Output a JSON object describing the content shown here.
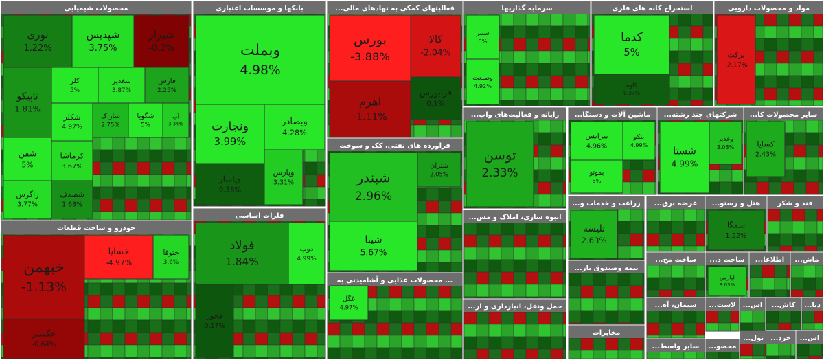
{
  "chart_data": {
    "type": "treemap",
    "groups": [
      {
        "title": "محصولات شیمیایی",
        "tiles": [
          "نوری",
          "شپدیس",
          "شیراز",
          "تاپیکو",
          "کلر",
          "شغدیر",
          "فارس",
          "شکلر",
          "شاراک",
          "شگویا",
          "آپ",
          "شفن",
          "کرماشا",
          "زاگرس",
          "شصدف"
        ],
        "values": [
          1.22,
          3.75,
          -0.2,
          1.81,
          5,
          3.87,
          2.25,
          4.97,
          2.75,
          5,
          3.34,
          5,
          3.67,
          3.77,
          1.68
        ],
        "value_labels": [
          "1.22%",
          "3.75%",
          "-0.2%",
          "1.81%",
          "5%",
          "3.87%",
          "2.25%",
          "4.97%",
          "2.75%",
          "5%",
          "3.34%",
          "5%",
          "3.67%",
          "3.77%",
          "1.68%"
        ]
      },
      {
        "title": "خودرو و ساخت قطعات",
        "tiles": [
          "خبهمن",
          "خگستر",
          "خساپا",
          "ختوقا"
        ],
        "values": [
          -1.13,
          -0.64,
          -4.97,
          3.6
        ],
        "value_labels": [
          "-1.13%",
          "-0.64%",
          "-4.97%",
          "3.6%"
        ]
      },
      {
        "title": "بانکها و موسسات اعتباری",
        "tiles": [
          "وبملت",
          "ونجارت",
          "وبصادر",
          "وپاسار",
          "وپارس"
        ],
        "values": [
          4.98,
          3.99,
          4.28,
          0.38,
          3.31
        ],
        "value_labels": [
          "4.98%",
          "3.99%",
          "4.28%",
          "0.38%",
          "3.31%"
        ]
      },
      {
        "title": "فلزات اساسی",
        "tiles": [
          "فولاد",
          "ذوب",
          "فخوز"
        ],
        "values": [
          1.84,
          4.99,
          0.17
        ],
        "value_labels": [
          "1.84%",
          "4.99%",
          "0.17%"
        ]
      },
      {
        "title": "...فعالیتهای کمکی به نهادهای مالی",
        "tiles": [
          "بورس",
          "کالا",
          "اهرم",
          "فرابورس"
        ],
        "values": [
          -3.88,
          -2.04,
          -1.11,
          0.1
        ],
        "value_labels": [
          "-3.88%",
          "-2.04%",
          "-1.11%",
          "0.1%"
        ]
      },
      {
        "title": "فراورده های نفتی، کک و سوخت",
        "tiles": [
          "شبندر",
          "شپنا",
          "شتران"
        ],
        "values": [
          2.96,
          5.67,
          2.05
        ],
        "value_labels": [
          "2.96%",
          "5.67%",
          "2.05%"
        ]
      },
      {
        "title": "محصولات غذایی و آشامیدنی به ...",
        "tiles": [
          "غگل"
        ],
        "values": [
          4.97
        ],
        "value_labels": [
          "4.97%"
        ]
      },
      {
        "title": "سرمایه گذاریها",
        "tiles": [
          "سنیر",
          "وصنعت"
        ],
        "values": [
          5,
          4.92
        ],
        "value_labels": [
          "5%",
          "4.92%"
        ]
      },
      {
        "title": "استخراج کانه های فلزی",
        "tiles": [
          "کدما",
          "کاوه"
        ],
        "values": [
          5,
          0.37
        ],
        "value_labels": [
          "5%",
          "0.37%"
        ]
      },
      {
        "title": "مواد و محصولات دارویی",
        "tiles": [
          "برکت"
        ],
        "values": [
          -2.17
        ],
        "value_labels": [
          "-2.17%"
        ]
      },
      {
        "title": "...رایانه و فعالیت‌های واب",
        "tiles": [
          "توسن"
        ],
        "values": [
          2.33
        ],
        "value_labels": [
          "2.33%"
        ]
      },
      {
        "title": "...ماشین آلات و دستگا",
        "tiles": [
          "بترانس",
          "بنکو",
          "بموتو"
        ],
        "values": [
          4.96,
          4.99,
          5
        ],
        "value_labels": [
          "4.96%",
          "4.99%",
          "5%"
        ]
      },
      {
        "title": "...شرکتهای چند رشته",
        "tiles": [
          "شستا",
          "وغدیر"
        ],
        "values": [
          4.99,
          3.03
        ],
        "value_labels": [
          "4.99%",
          "3.03%"
        ]
      },
      {
        "title": "...سایر محصولات کا",
        "tiles": [
          "کساپا"
        ],
        "values": [
          2.43
        ],
        "value_labels": [
          "2.43%"
        ]
      },
      {
        "title": "...انبوه سازی، املاک و مس",
        "tiles": [],
        "values": [],
        "value_labels": []
      },
      {
        "title": "...حمل ونقل، انبارداری و ار",
        "tiles": [],
        "values": [],
        "value_labels": []
      },
      {
        "title": "...زراعت و خدمات و",
        "tiles": [
          "تلیسه"
        ],
        "values": [
          2.63
        ],
        "value_labels": [
          "2.63%"
        ]
      },
      {
        "title": "...بیمه وصندوق باز",
        "tiles": [],
        "values": [],
        "value_labels": []
      },
      {
        "title": "مخابرات",
        "tiles": [],
        "values": [],
        "value_labels": []
      },
      {
        "title": "...عرضه برق",
        "tiles": [],
        "values": [],
        "value_labels": []
      },
      {
        "title": "...هتل و رستو",
        "tiles": [
          "سمگا"
        ],
        "values": [
          1.22
        ],
        "value_labels": [
          "1.22%"
        ]
      },
      {
        "title": "قند و شکر",
        "tiles": [],
        "values": [],
        "value_labels": []
      },
      {
        "title": "...ساخت مح",
        "tiles": [],
        "values": [],
        "value_labels": []
      },
      {
        "title": "...ساخت د",
        "tiles": [
          "لپارس"
        ],
        "values": [
          3.03
        ],
        "value_labels": [
          "3.03%"
        ]
      },
      {
        "title": "...اطلاعا",
        "tiles": [],
        "values": [],
        "value_labels": []
      },
      {
        "title": "...ماش",
        "tiles": [],
        "values": [],
        "value_labels": []
      },
      {
        "title": "...سیمان، آه",
        "tiles": [],
        "values": [],
        "value_labels": []
      },
      {
        "title": "...لاست",
        "tiles": [],
        "values": [],
        "value_labels": []
      },
      {
        "title": "...اس",
        "tiles": [],
        "values": [],
        "value_labels": []
      },
      {
        "title": "...کاش",
        "tiles": [],
        "values": [],
        "value_labels": []
      },
      {
        "title": "...دبا",
        "tiles": [],
        "values": [],
        "value_labels": []
      },
      {
        "title": "...سایر واسط",
        "tiles": [],
        "values": [],
        "value_labels": []
      },
      {
        "title": "...محصو",
        "tiles": [],
        "values": [],
        "value_labels": []
      },
      {
        "title": "...تول",
        "tiles": [],
        "values": [],
        "value_labels": []
      },
      {
        "title": "...خرد",
        "tiles": [],
        "values": [],
        "value_labels": []
      },
      {
        "title": "...اس",
        "tiles": [],
        "values": [],
        "value_labels": []
      }
    ]
  }
}
